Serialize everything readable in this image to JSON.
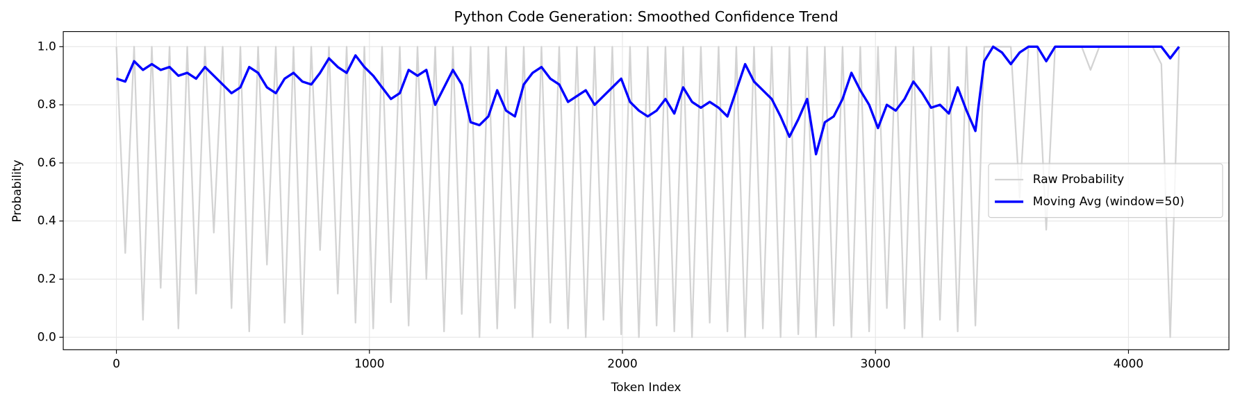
{
  "chart_data": {
    "type": "line",
    "title": "Python Code Generation: Smoothed Confidence Trend",
    "xlabel": "Token Index",
    "ylabel": "Probability",
    "x": [
      0,
      35,
      70,
      105,
      140,
      175,
      210,
      245,
      280,
      315,
      350,
      385,
      420,
      455,
      490,
      525,
      560,
      595,
      630,
      665,
      700,
      735,
      770,
      805,
      840,
      875,
      910,
      945,
      980,
      1015,
      1050,
      1085,
      1120,
      1155,
      1190,
      1225,
      1260,
      1295,
      1330,
      1365,
      1400,
      1435,
      1470,
      1505,
      1540,
      1575,
      1610,
      1645,
      1680,
      1715,
      1750,
      1785,
      1820,
      1855,
      1890,
      1925,
      1960,
      1995,
      2030,
      2065,
      2100,
      2135,
      2170,
      2205,
      2240,
      2275,
      2310,
      2345,
      2380,
      2415,
      2450,
      2485,
      2520,
      2555,
      2590,
      2625,
      2660,
      2695,
      2730,
      2765,
      2800,
      2835,
      2870,
      2905,
      2940,
      2975,
      3010,
      3045,
      3080,
      3115,
      3150,
      3185,
      3220,
      3255,
      3290,
      3325,
      3360,
      3395,
      3430,
      3465,
      3500,
      3535,
      3570,
      3605,
      3640,
      3675,
      3710,
      3745,
      3780,
      3815,
      3850,
      3885,
      3920,
      3955,
      3990,
      4025,
      4060,
      4095,
      4130,
      4165,
      4200
    ],
    "series": [
      {
        "name": "Raw Probability",
        "color": "#d3d3d3",
        "width": 2,
        "values": [
          1.0,
          0.29,
          1.0,
          0.06,
          1.0,
          0.17,
          1.0,
          0.03,
          1.0,
          0.15,
          1.0,
          0.36,
          1.0,
          0.1,
          1.0,
          0.02,
          1.0,
          0.25,
          1.0,
          0.05,
          1.0,
          0.01,
          1.0,
          0.3,
          1.0,
          0.15,
          1.0,
          0.05,
          1.0,
          0.03,
          1.0,
          0.12,
          1.0,
          0.04,
          1.0,
          0.2,
          1.0,
          0.02,
          1.0,
          0.08,
          1.0,
          0.0,
          1.0,
          0.03,
          1.0,
          0.1,
          1.0,
          0.0,
          1.0,
          0.05,
          1.0,
          0.03,
          1.0,
          0.0,
          1.0,
          0.06,
          1.0,
          0.01,
          1.0,
          0.0,
          1.0,
          0.04,
          1.0,
          0.02,
          1.0,
          0.0,
          1.0,
          0.05,
          1.0,
          0.02,
          1.0,
          0.0,
          1.0,
          0.03,
          1.0,
          0.0,
          1.0,
          0.01,
          1.0,
          0.0,
          1.0,
          0.04,
          1.0,
          0.0,
          1.0,
          0.02,
          1.0,
          0.1,
          1.0,
          0.03,
          1.0,
          0.0,
          1.0,
          0.06,
          1.0,
          0.02,
          1.0,
          0.04,
          1.0,
          1.0,
          1.0,
          1.0,
          0.48,
          1.0,
          1.0,
          0.37,
          1.0,
          1.0,
          1.0,
          1.0,
          0.92,
          1.0,
          1.0,
          1.0,
          1.0,
          1.0,
          1.0,
          1.0,
          0.94,
          0.0,
          1.0
        ]
      },
      {
        "name": "Moving Avg (window=50)",
        "color": "#0000ff",
        "width": 3,
        "values": [
          0.89,
          0.88,
          0.95,
          0.92,
          0.94,
          0.92,
          0.93,
          0.9,
          0.91,
          0.89,
          0.93,
          0.9,
          0.87,
          0.84,
          0.86,
          0.93,
          0.91,
          0.86,
          0.84,
          0.89,
          0.91,
          0.88,
          0.87,
          0.91,
          0.96,
          0.93,
          0.91,
          0.97,
          0.93,
          0.9,
          0.86,
          0.82,
          0.84,
          0.92,
          0.9,
          0.92,
          0.8,
          0.86,
          0.92,
          0.87,
          0.74,
          0.73,
          0.76,
          0.85,
          0.78,
          0.76,
          0.87,
          0.91,
          0.93,
          0.89,
          0.87,
          0.81,
          0.83,
          0.85,
          0.8,
          0.83,
          0.86,
          0.89,
          0.81,
          0.78,
          0.76,
          0.78,
          0.82,
          0.77,
          0.86,
          0.81,
          0.79,
          0.81,
          0.79,
          0.76,
          0.85,
          0.94,
          0.88,
          0.85,
          0.82,
          0.76,
          0.69,
          0.75,
          0.82,
          0.63,
          0.74,
          0.76,
          0.82,
          0.91,
          0.85,
          0.8,
          0.72,
          0.8,
          0.78,
          0.82,
          0.88,
          0.84,
          0.79,
          0.8,
          0.77,
          0.86,
          0.78,
          0.71,
          0.95,
          1.0,
          0.98,
          0.94,
          0.98,
          1.0,
          1.0,
          0.95,
          1.0,
          1.0,
          1.0,
          1.0,
          1.0,
          1.0,
          1.0,
          1.0,
          1.0,
          1.0,
          1.0,
          1.0,
          1.0,
          0.96,
          1.0
        ]
      }
    ],
    "xlim": [
      -210,
      4397
    ],
    "xticks": [
      0,
      1000,
      2000,
      3000,
      4000
    ],
    "ylim": [
      -0.043,
      1.052
    ],
    "yticks": [
      {
        "value": 0,
        "label": "0.0"
      },
      0.2,
      0.4,
      0.6,
      0.8,
      {
        "value": 1,
        "label": "1.0"
      }
    ],
    "grid": true,
    "legend": "center right"
  }
}
